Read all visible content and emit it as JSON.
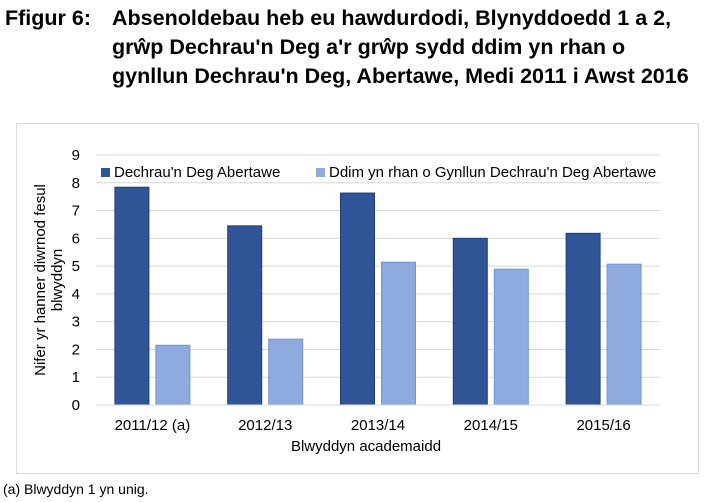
{
  "figure_label": "Ffigur 6:",
  "title": "Absenoldebau heb eu hawdurdodi, Blynyddoedd 1 a 2, grŵp Dechrau'n Deg a'r grŵp sydd ddim yn rhan o gynllun Dechrau'n Deg, Abertawe, Medi 2011 i Awst 2016",
  "footnote": "(a) Blwyddyn 1 yn unig.",
  "chart_data": {
    "type": "bar",
    "title": "",
    "xlabel": "Blwyddyn academaidd",
    "ylabel": "Nifer yr hanner diwrnod fesul blwyddyn",
    "categories": [
      "2011/12 (a)",
      "2012/13",
      "2013/14",
      "2014/15",
      "2015/16"
    ],
    "ylim": [
      0,
      9
    ],
    "yticks": [
      0,
      1,
      2,
      3,
      4,
      5,
      6,
      7,
      8,
      9
    ],
    "grid": true,
    "legend": "top",
    "series": [
      {
        "name": "Dechrau'n Deg Abertawe",
        "color": "#2f5597",
        "values": [
          7.84,
          6.45,
          7.63,
          6.0,
          6.18
        ]
      },
      {
        "name": "Ddim yn rhan o Gynllun Dechrau'n Deg Abertawe",
        "color": "#8faadc",
        "values": [
          2.15,
          2.37,
          5.14,
          4.89,
          5.07
        ]
      }
    ]
  }
}
